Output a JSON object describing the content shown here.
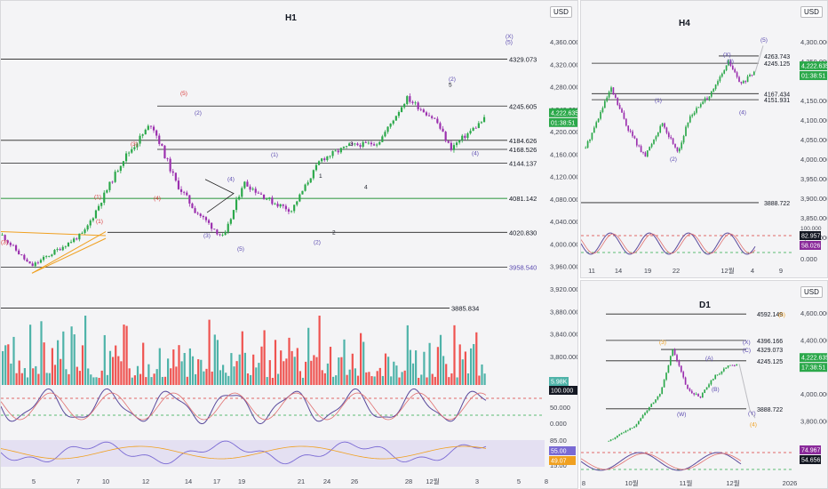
{
  "colors": {
    "up": "#2ba84a",
    "down": "#9b2fae",
    "wave": "#5b4bb0",
    "red": "#d93a3a",
    "ma": "#f0a020",
    "vol_up": "#4fb3a9",
    "vol_down": "#ef5350",
    "osc_k": "#5a4a9c",
    "osc_d": "#e07070",
    "rsi": "#7a6ad4"
  },
  "h1": {
    "title": "H1",
    "currency": "USD",
    "price_ticks": [
      "4,360.000",
      "4,320.000",
      "4,280.000",
      "4,240.000",
      "4,200.000",
      "4,160.000",
      "4,120.000",
      "4,080.000",
      "4,040.000",
      "4,000.000",
      "3,960.000",
      "3,920.000",
      "3,880.000",
      "3,840.000",
      "3,800.000"
    ],
    "levels": [
      {
        "value": "4329.073"
      },
      {
        "value": "4245.605"
      },
      {
        "value": "4184.626"
      },
      {
        "value": "4168.526"
      },
      {
        "value": "4144.137"
      },
      {
        "value": "4081.142"
      },
      {
        "value": "4020.830"
      },
      {
        "value": "3958.540"
      },
      {
        "value": "3885.834"
      }
    ],
    "last_price": "4,222.635",
    "countdown": "01:38:51",
    "vol_label": "5.98K",
    "osc_value": "100.000",
    "osc_ticks": [
      "50.000",
      "0.000"
    ],
    "rsi_ticks": [
      "85.00",
      "15.00"
    ],
    "rsi_value": "55.00",
    "rsi_value2": "49.07",
    "x_ticks": [
      "5",
      "7",
      "10",
      "12",
      "14",
      "17",
      "19",
      "21",
      "24",
      "26",
      "28",
      "12월",
      "3",
      "5",
      "8"
    ],
    "labels": [
      "(X)",
      "(5)",
      "(5)",
      "(2)",
      "5",
      "(3)",
      "(1)",
      "(4)",
      "3",
      "(1)",
      "1",
      "4",
      "(3)",
      "(5)",
      "(2)",
      "2",
      "(1)",
      "(4)",
      "(2)",
      "(3)",
      "(4)"
    ]
  },
  "h4": {
    "title": "H4",
    "currency": "USD",
    "price_ticks": [
      "4,300.000",
      "4,250.000",
      "4,150.000",
      "4,100.000",
      "4,050.000",
      "4,000.000",
      "3,950.000",
      "3,900.000",
      "3,850.000",
      "3,800.000",
      "0.000"
    ],
    "levels": [
      {
        "value": "4263.743"
      },
      {
        "value": "4245.125"
      },
      {
        "value": "4167.434"
      },
      {
        "value": "4151.931"
      },
      {
        "value": "3888.722"
      }
    ],
    "last_price": "4,222.635",
    "countdown": "01:38:51",
    "osc_value": "82.957",
    "osc_value2": "58.026",
    "osc_tick": "100.000",
    "x_ticks": [
      "11",
      "14",
      "19",
      "22",
      "12월",
      "4",
      "9"
    ],
    "labels": [
      "(5)",
      "(X)",
      "(3)",
      "(1)",
      "(4)",
      "(2)"
    ]
  },
  "d1": {
    "title": "D1",
    "currency": "USD",
    "price_ticks": [
      "4,600.000",
      "4,400.000",
      "4,000.000",
      "3,800.000"
    ],
    "levels": [
      {
        "value": "4592.149"
      },
      {
        "value": "4396.166"
      },
      {
        "value": "4329.073"
      },
      {
        "value": "4245.125"
      },
      {
        "value": "3888.722"
      }
    ],
    "last_price": "4,222.635",
    "countdown": "17:38:51",
    "osc_value": "74.967",
    "osc_value2": "54.656",
    "x_ticks": [
      "8",
      "10월",
      "11월",
      "12월",
      "2026"
    ],
    "labels": [
      "(5)",
      "(3)",
      "(X)",
      "(C)",
      "(A)",
      "(B)",
      "(W)",
      "(Y)",
      "(4)"
    ]
  }
}
